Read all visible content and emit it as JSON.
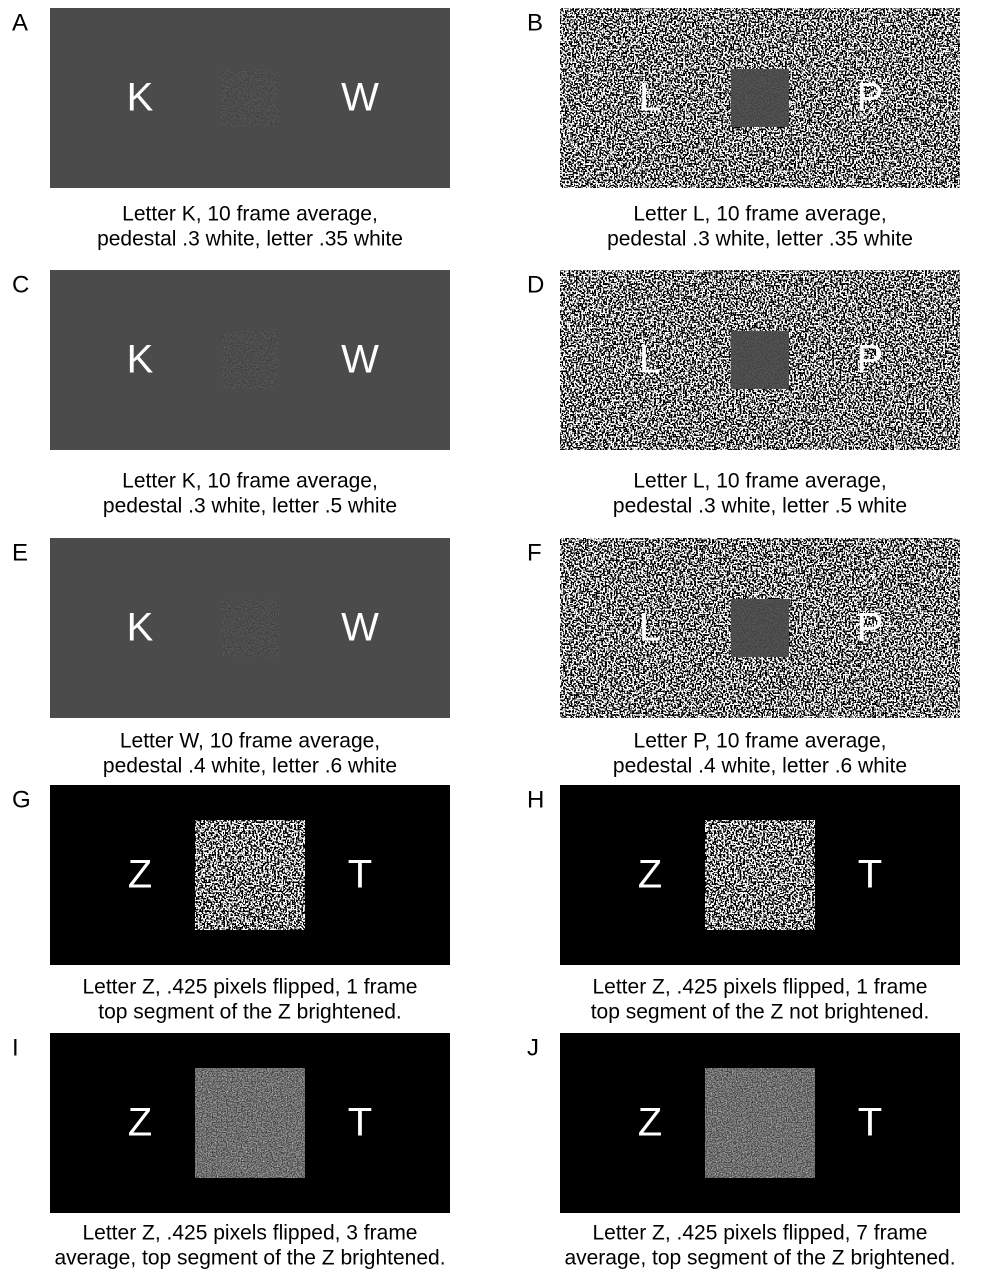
{
  "panels": [
    {
      "label": "A",
      "left": "K",
      "right": "W",
      "caption": [
        "Letter K, 10 frame average,",
        "pedestal .3 white, letter .35 white"
      ]
    },
    {
      "label": "B",
      "left": "L",
      "right": "P",
      "caption": [
        "Letter L, 10 frame average,",
        "pedestal .3 white, letter .35 white"
      ]
    },
    {
      "label": "C",
      "left": "K",
      "right": "W",
      "caption": [
        "Letter K, 10 frame average,",
        "pedestal .3 white, letter .5 white"
      ]
    },
    {
      "label": "D",
      "left": "L",
      "right": "P",
      "caption": [
        "Letter L, 10 frame average,",
        "pedestal .3 white, letter .5 white"
      ]
    },
    {
      "label": "E",
      "left": "K",
      "right": "W",
      "caption": [
        "Letter W, 10 frame average,",
        "pedestal .4 white, letter .6 white"
      ]
    },
    {
      "label": "F",
      "left": "L",
      "right": "P",
      "caption": [
        "Letter P, 10 frame average,",
        "pedestal .4 white, letter .6 white"
      ]
    },
    {
      "label": "G",
      "left": "Z",
      "right": "T",
      "caption": [
        "Letter Z, .425 pixels flipped, 1 frame",
        "top segment of the Z brightened."
      ]
    },
    {
      "label": "H",
      "left": "Z",
      "right": "T",
      "caption": [
        "Letter Z, .425 pixels flipped, 1 frame",
        "top segment of the Z not brightened."
      ]
    },
    {
      "label": "I",
      "left": "Z",
      "right": "T",
      "caption": [
        "Letter Z, .425 pixels flipped, 3 frame",
        "average, top segment of the Z brightened."
      ]
    },
    {
      "label": "J",
      "left": "Z",
      "right": "T",
      "caption": [
        "Letter Z, .425 pixels flipped, 7 frame",
        "average, top segment of the Z brightened."
      ]
    }
  ]
}
